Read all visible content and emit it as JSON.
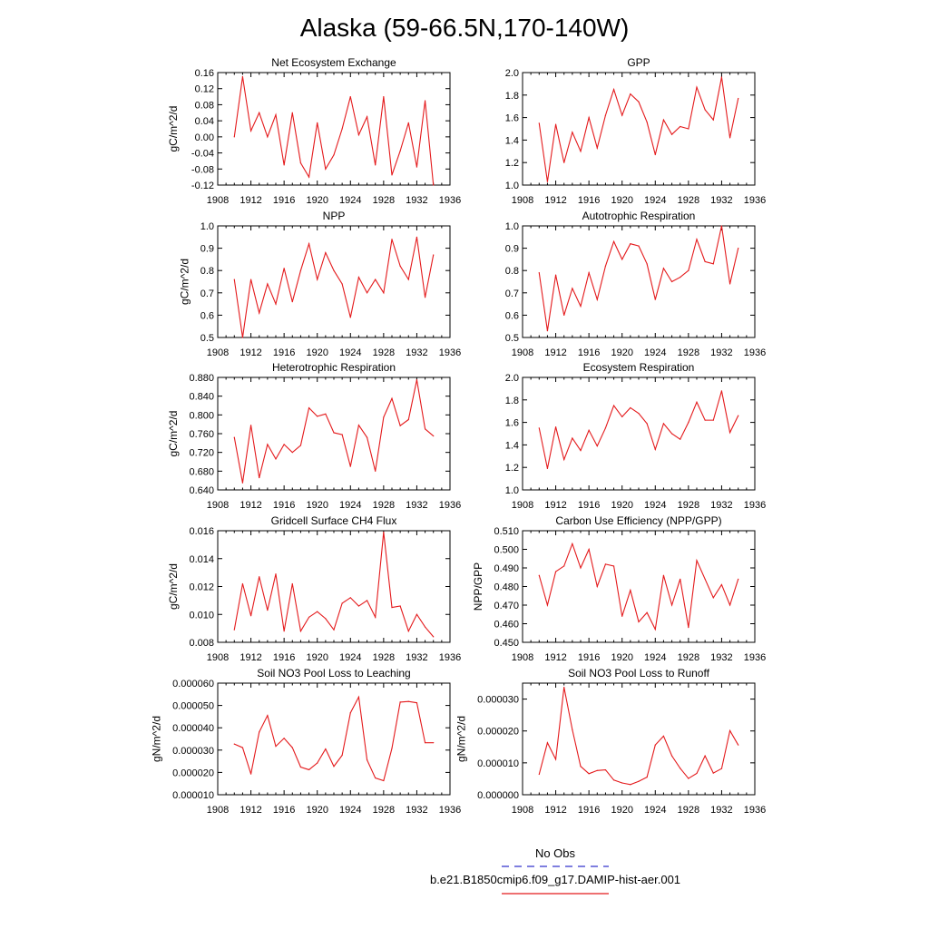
{
  "figure": {
    "title": "Alaska (59-66.5N,170-140W)",
    "legend": [
      {
        "label": "No Obs",
        "color": "#3333cc",
        "dash": "dashed"
      },
      {
        "label": "b.e21.B1850cmip6.f09_g17.DAMIP-hist-aer.001",
        "color": "#e41a1c",
        "dash": "solid"
      }
    ]
  },
  "chart_data": [
    {
      "type": "line",
      "title": "Net Ecosystem Exchange",
      "ylabel": "gC/m^2/d",
      "xlim": [
        1908,
        1936
      ],
      "xticks": [
        1908,
        1912,
        1916,
        1920,
        1924,
        1928,
        1932,
        1936
      ],
      "ylim": [
        -0.12,
        0.16
      ],
      "yticks": [
        -0.12,
        -0.08,
        -0.04,
        0.0,
        0.04,
        0.08,
        0.12,
        0.16
      ],
      "ytick_labels": [
        "-0.12",
        "-0.08",
        "-0.04",
        "0.00",
        "0.04",
        "0.08",
        "0.12",
        "0.16"
      ],
      "x": [
        1910,
        1911,
        1912,
        1913,
        1914,
        1915,
        1916,
        1917,
        1918,
        1919,
        1920,
        1921,
        1922,
        1923,
        1924,
        1925,
        1926,
        1927,
        1928,
        1929,
        1930,
        1931,
        1932,
        1933,
        1934
      ],
      "series": [
        {
          "color": "#e41a1c",
          "values": [
            0.0,
            0.15,
            0.015,
            0.06,
            0.0,
            0.055,
            -0.07,
            0.06,
            -0.065,
            -0.1,
            0.035,
            -0.08,
            -0.045,
            0.02,
            0.1,
            0.005,
            0.05,
            -0.07,
            0.1,
            -0.095,
            -0.035,
            0.035,
            -0.075,
            0.09,
            -0.12
          ]
        }
      ]
    },
    {
      "type": "line",
      "title": "GPP",
      "ylabel": "",
      "xlim": [
        1908,
        1936
      ],
      "xticks": [
        1908,
        1912,
        1916,
        1920,
        1924,
        1928,
        1932,
        1936
      ],
      "ylim": [
        1.0,
        2.0
      ],
      "yticks": [
        1.0,
        1.2,
        1.4,
        1.6,
        1.8,
        2.0
      ],
      "ytick_labels": [
        "1.0",
        "1.2",
        "1.4",
        "1.6",
        "1.8",
        "2.0"
      ],
      "x": [
        1910,
        1911,
        1912,
        1913,
        1914,
        1915,
        1916,
        1917,
        1918,
        1919,
        1920,
        1921,
        1922,
        1923,
        1924,
        1925,
        1926,
        1927,
        1928,
        1929,
        1930,
        1931,
        1932,
        1933,
        1934
      ],
      "series": [
        {
          "color": "#e41a1c",
          "values": [
            1.55,
            1.03,
            1.54,
            1.2,
            1.47,
            1.3,
            1.6,
            1.33,
            1.62,
            1.85,
            1.62,
            1.81,
            1.74,
            1.56,
            1.27,
            1.58,
            1.45,
            1.52,
            1.5,
            1.87,
            1.67,
            1.58,
            1.96,
            1.42,
            1.77
          ]
        }
      ]
    },
    {
      "type": "line",
      "title": "NPP",
      "ylabel": "gC/m^2/d",
      "xlim": [
        1908,
        1936
      ],
      "xticks": [
        1908,
        1912,
        1916,
        1920,
        1924,
        1928,
        1932,
        1936
      ],
      "ylim": [
        0.5,
        1.0
      ],
      "yticks": [
        0.5,
        0.6,
        0.7,
        0.8,
        0.9,
        1.0
      ],
      "ytick_labels": [
        "0.5",
        "0.6",
        "0.7",
        "0.8",
        "0.9",
        "1.0"
      ],
      "x": [
        1910,
        1911,
        1912,
        1913,
        1914,
        1915,
        1916,
        1917,
        1918,
        1919,
        1920,
        1921,
        1922,
        1923,
        1924,
        1925,
        1926,
        1927,
        1928,
        1929,
        1930,
        1931,
        1932,
        1933,
        1934
      ],
      "series": [
        {
          "color": "#e41a1c",
          "values": [
            0.76,
            0.5,
            0.76,
            0.61,
            0.74,
            0.65,
            0.81,
            0.66,
            0.8,
            0.92,
            0.76,
            0.88,
            0.8,
            0.74,
            0.59,
            0.77,
            0.7,
            0.76,
            0.7,
            0.94,
            0.82,
            0.76,
            0.95,
            0.68,
            0.87
          ]
        }
      ]
    },
    {
      "type": "line",
      "title": "Autotrophic Respiration",
      "ylabel": "",
      "xlim": [
        1908,
        1936
      ],
      "xticks": [
        1908,
        1912,
        1916,
        1920,
        1924,
        1928,
        1932,
        1936
      ],
      "ylim": [
        0.5,
        1.0
      ],
      "yticks": [
        0.5,
        0.6,
        0.7,
        0.8,
        0.9,
        1.0
      ],
      "ytick_labels": [
        "0.5",
        "0.6",
        "0.7",
        "0.8",
        "0.9",
        "1.0"
      ],
      "x": [
        1910,
        1911,
        1912,
        1913,
        1914,
        1915,
        1916,
        1917,
        1918,
        1919,
        1920,
        1921,
        1922,
        1923,
        1924,
        1925,
        1926,
        1927,
        1928,
        1929,
        1930,
        1931,
        1932,
        1933,
        1934
      ],
      "series": [
        {
          "color": "#e41a1c",
          "values": [
            0.79,
            0.53,
            0.78,
            0.6,
            0.72,
            0.64,
            0.79,
            0.67,
            0.82,
            0.93,
            0.85,
            0.92,
            0.91,
            0.83,
            0.67,
            0.81,
            0.75,
            0.77,
            0.8,
            0.94,
            0.84,
            0.83,
            1.0,
            0.74,
            0.9
          ]
        }
      ]
    },
    {
      "type": "line",
      "title": "Heterotrophic Respiration",
      "ylabel": "gC/m^2/d",
      "xlim": [
        1908,
        1936
      ],
      "xticks": [
        1908,
        1912,
        1916,
        1920,
        1924,
        1928,
        1932,
        1936
      ],
      "ylim": [
        0.64,
        0.88
      ],
      "yticks": [
        0.64,
        0.68,
        0.72,
        0.76,
        0.8,
        0.84,
        0.88
      ],
      "ytick_labels": [
        "0.640",
        "0.680",
        "0.720",
        "0.760",
        "0.800",
        "0.840",
        "0.880"
      ],
      "x": [
        1910,
        1911,
        1912,
        1913,
        1914,
        1915,
        1916,
        1917,
        1918,
        1919,
        1920,
        1921,
        1922,
        1923,
        1924,
        1925,
        1926,
        1927,
        1928,
        1929,
        1930,
        1931,
        1932,
        1933,
        1934
      ],
      "series": [
        {
          "color": "#e41a1c",
          "values": [
            0.752,
            0.655,
            0.778,
            0.666,
            0.737,
            0.706,
            0.737,
            0.72,
            0.735,
            0.815,
            0.797,
            0.802,
            0.762,
            0.758,
            0.69,
            0.778,
            0.752,
            0.68,
            0.795,
            0.835,
            0.777,
            0.79,
            0.875,
            0.77,
            0.755
          ]
        }
      ]
    },
    {
      "type": "line",
      "title": "Ecosystem Respiration",
      "ylabel": "",
      "xlim": [
        1908,
        1936
      ],
      "xticks": [
        1908,
        1912,
        1916,
        1920,
        1924,
        1928,
        1932,
        1936
      ],
      "ylim": [
        1.0,
        2.0
      ],
      "yticks": [
        1.0,
        1.2,
        1.4,
        1.6,
        1.8,
        2.0
      ],
      "ytick_labels": [
        "1.0",
        "1.2",
        "1.4",
        "1.6",
        "1.8",
        "2.0"
      ],
      "x": [
        1910,
        1911,
        1912,
        1913,
        1914,
        1915,
        1916,
        1917,
        1918,
        1919,
        1920,
        1921,
        1922,
        1923,
        1924,
        1925,
        1926,
        1927,
        1928,
        1929,
        1930,
        1931,
        1932,
        1933,
        1934
      ],
      "series": [
        {
          "color": "#e41a1c",
          "values": [
            1.55,
            1.19,
            1.56,
            1.27,
            1.46,
            1.35,
            1.53,
            1.39,
            1.55,
            1.75,
            1.65,
            1.73,
            1.68,
            1.59,
            1.36,
            1.59,
            1.5,
            1.45,
            1.6,
            1.78,
            1.62,
            1.62,
            1.88,
            1.51,
            1.66
          ]
        }
      ]
    },
    {
      "type": "line",
      "title": "Gridcell Surface CH4 Flux",
      "ylabel": "gC/m^2/d",
      "xlim": [
        1908,
        1936
      ],
      "xticks": [
        1908,
        1912,
        1916,
        1920,
        1924,
        1928,
        1932,
        1936
      ],
      "ylim": [
        0.008,
        0.016
      ],
      "yticks": [
        0.008,
        0.01,
        0.012,
        0.014,
        0.016
      ],
      "ytick_labels": [
        "0.008",
        "0.010",
        "0.012",
        "0.014",
        "0.016"
      ],
      "x": [
        1910,
        1911,
        1912,
        1913,
        1914,
        1915,
        1916,
        1917,
        1918,
        1919,
        1920,
        1921,
        1922,
        1923,
        1924,
        1925,
        1926,
        1927,
        1928,
        1929,
        1930,
        1931,
        1932,
        1933,
        1934
      ],
      "series": [
        {
          "color": "#e41a1c",
          "values": [
            0.0089,
            0.0122,
            0.0099,
            0.0127,
            0.0103,
            0.0129,
            0.0088,
            0.0122,
            0.0088,
            0.0098,
            0.0102,
            0.0097,
            0.0089,
            0.0108,
            0.0112,
            0.0106,
            0.011,
            0.0098,
            0.0159,
            0.0105,
            0.0106,
            0.0088,
            0.01,
            0.0091,
            0.0084
          ]
        }
      ]
    },
    {
      "type": "line",
      "title": "Carbon Use Efficiency (NPP/GPP)",
      "ylabel": "NPP/GPP",
      "xlim": [
        1908,
        1936
      ],
      "xticks": [
        1908,
        1912,
        1916,
        1920,
        1924,
        1928,
        1932,
        1936
      ],
      "ylim": [
        0.45,
        0.51
      ],
      "yticks": [
        0.45,
        0.46,
        0.47,
        0.48,
        0.49,
        0.5,
        0.51
      ],
      "ytick_labels": [
        "0.450",
        "0.460",
        "0.470",
        "0.480",
        "0.490",
        "0.500",
        "0.510"
      ],
      "x": [
        1910,
        1911,
        1912,
        1913,
        1914,
        1915,
        1916,
        1917,
        1918,
        1919,
        1920,
        1921,
        1922,
        1923,
        1924,
        1925,
        1926,
        1927,
        1928,
        1929,
        1930,
        1931,
        1932,
        1933,
        1934
      ],
      "series": [
        {
          "color": "#e41a1c",
          "values": [
            0.486,
            0.47,
            0.488,
            0.491,
            0.503,
            0.49,
            0.5,
            0.48,
            0.492,
            0.491,
            0.464,
            0.478,
            0.461,
            0.466,
            0.457,
            0.486,
            0.47,
            0.484,
            0.458,
            0.494,
            0.484,
            0.474,
            0.481,
            0.47,
            0.484
          ]
        }
      ]
    },
    {
      "type": "line",
      "title": "Soil NO3 Pool Loss to Leaching",
      "ylabel": "gN/m^2/d",
      "xlim": [
        1908,
        1936
      ],
      "xticks": [
        1908,
        1912,
        1916,
        1920,
        1924,
        1928,
        1932,
        1936
      ],
      "ylim": [
        1e-05,
        6e-05
      ],
      "yticks": [
        1e-05,
        2e-05,
        3e-05,
        4e-05,
        5e-05,
        6e-05
      ],
      "ytick_labels": [
        "0.000010",
        "0.000020",
        "0.000030",
        "0.000040",
        "0.000050",
        "0.000060"
      ],
      "x": [
        1910,
        1911,
        1912,
        1913,
        1914,
        1915,
        1916,
        1917,
        1918,
        1919,
        1920,
        1921,
        1922,
        1923,
        1924,
        1925,
        1926,
        1927,
        1928,
        1929,
        1930,
        1931,
        1932,
        1933,
        1934
      ],
      "series": [
        {
          "color": "#e41a1c",
          "values": [
            3.27e-05,
            3.11e-05,
            1.93e-05,
            3.81e-05,
            4.55e-05,
            3.17e-05,
            3.53e-05,
            3.11e-05,
            2.24e-05,
            2.12e-05,
            2.42e-05,
            3.05e-05,
            2.27e-05,
            2.77e-05,
            4.67e-05,
            5.38e-05,
            2.56e-05,
            1.75e-05,
            1.63e-05,
            3.08e-05,
            5.15e-05,
            5.18e-05,
            5.12e-05,
            3.33e-05,
            3.33e-05
          ]
        }
      ]
    },
    {
      "type": "line",
      "title": "Soil NO3 Pool Loss to Runoff",
      "ylabel": "gN/m^2/d",
      "xlim": [
        1908,
        1936
      ],
      "xticks": [
        1908,
        1912,
        1916,
        1920,
        1924,
        1928,
        1932,
        1936
      ],
      "ylim": [
        0.0,
        3.5e-05
      ],
      "yticks": [
        0.0,
        1e-05,
        2e-05,
        3e-05
      ],
      "ytick_labels": [
        "0.000000",
        "0.000010",
        "0.000020",
        "0.000030"
      ],
      "x": [
        1910,
        1911,
        1912,
        1913,
        1914,
        1915,
        1916,
        1917,
        1918,
        1919,
        1920,
        1921,
        1922,
        1923,
        1924,
        1925,
        1926,
        1927,
        1928,
        1929,
        1930,
        1931,
        1932,
        1933,
        1934
      ],
      "series": [
        {
          "color": "#e41a1c",
          "values": [
            6.4e-06,
            1.63e-05,
            1.11e-05,
            3.37e-05,
            2.04e-05,
            8.9e-06,
            6.6e-06,
            7.6e-06,
            7.8e-06,
            4.6e-06,
            3.7e-06,
            3.2e-06,
            4.2e-06,
            5.5e-06,
            1.56e-05,
            1.84e-05,
            1.22e-05,
            8.3e-06,
            5.1e-06,
            6.7e-06,
            1.22e-05,
            6.8e-06,
            8.2e-06,
            2.01e-05,
            1.56e-05
          ]
        }
      ]
    }
  ]
}
